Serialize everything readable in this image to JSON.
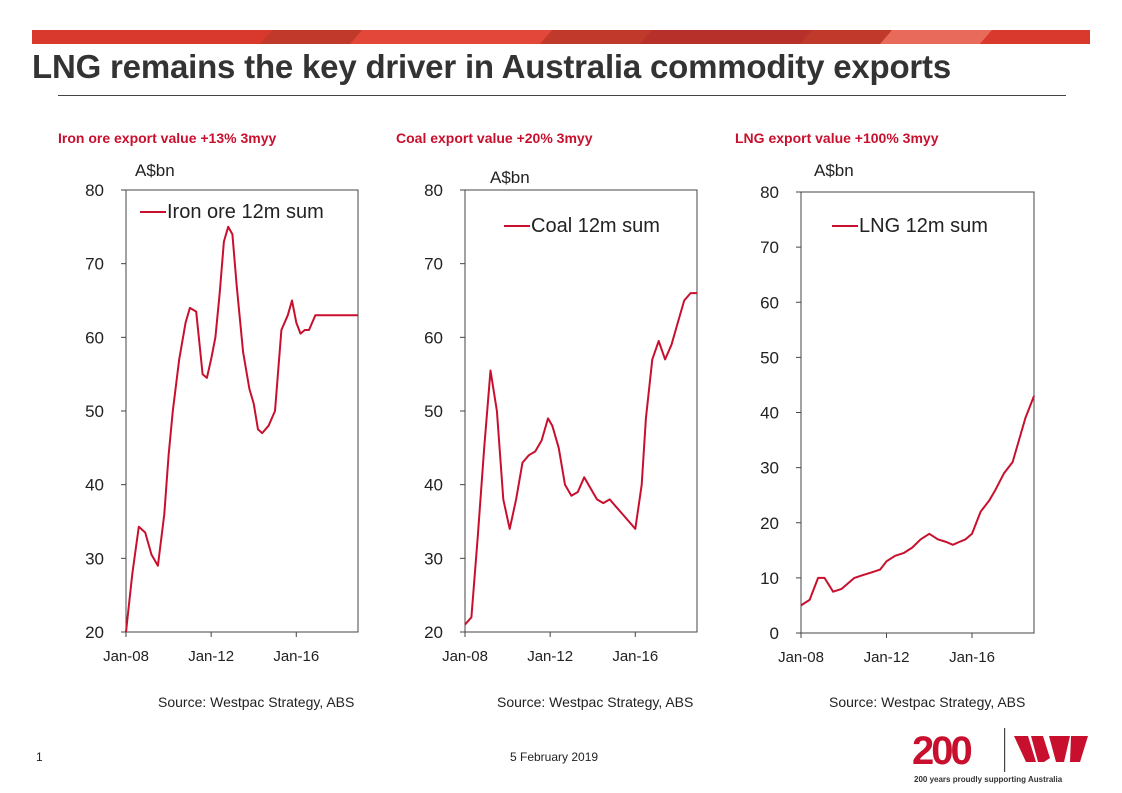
{
  "title": "LNG remains the key driver in Australia commodity exports",
  "colors": {
    "accent": "#c8102e",
    "title": "#333333",
    "bar_dark": "#c0392b",
    "bar_light": "#e35b4b"
  },
  "charts": [
    {
      "heading": "Iron ore export value +13% 3myy",
      "source": "Source: Westpac Strategy, ABS"
    },
    {
      "heading": "Coal export value +20% 3myy",
      "source": "Source: Westpac Strategy, ABS"
    },
    {
      "heading": "LNG export value +100% 3myy",
      "source": "Source: Westpac Strategy, ABS"
    }
  ],
  "chart_data": [
    {
      "type": "line",
      "title": "Iron ore export value +13% 3myy",
      "ylabel": "A$bn",
      "ylim": [
        20,
        80
      ],
      "yticks": [
        "20",
        "30",
        "40",
        "50",
        "60",
        "70",
        "80"
      ],
      "xticks": [
        "Jan-08",
        "Jan-12",
        "Jan-16"
      ],
      "xlim": [
        2008.0,
        2018.9
      ],
      "legend": "top-left",
      "series": [
        {
          "name": "Iron ore 12m sum",
          "x": [
            2008.0,
            2008.3,
            2008.6,
            2008.9,
            2009.2,
            2009.5,
            2009.8,
            2010.0,
            2010.2,
            2010.5,
            2010.8,
            2011.0,
            2011.3,
            2011.6,
            2011.8,
            2012.0,
            2012.2,
            2012.4,
            2012.6,
            2012.8,
            2013.0,
            2013.2,
            2013.5,
            2013.8,
            2014.0,
            2014.2,
            2014.4,
            2014.7,
            2015.0,
            2015.3,
            2015.6,
            2015.8,
            2016.0,
            2016.2,
            2016.4,
            2016.6,
            2016.9,
            2017.2,
            2017.5,
            2017.8,
            2018.0,
            2018.3,
            2018.6,
            2018.9
          ],
          "values": [
            20,
            28,
            34.3,
            33.5,
            30.5,
            29,
            36,
            44,
            50,
            57,
            62,
            64,
            63.5,
            55,
            54.5,
            57,
            60,
            66,
            73,
            75,
            74,
            67,
            58,
            53,
            51,
            47.5,
            47,
            48,
            50,
            61,
            63,
            65,
            62,
            60.5,
            61,
            61,
            63,
            63,
            63,
            63,
            63,
            63,
            63,
            63
          ]
        }
      ]
    },
    {
      "type": "line",
      "title": "Coal export value +20% 3myy",
      "ylabel": "A$bn",
      "ylim": [
        20,
        80
      ],
      "yticks": [
        "20",
        "30",
        "40",
        "50",
        "60",
        "70",
        "80"
      ],
      "xticks": [
        "Jan-08",
        "Jan-12",
        "Jan-16"
      ],
      "xlim": [
        2008.0,
        2018.9
      ],
      "legend": "top-left",
      "series": [
        {
          "name": "Coal 12m sum",
          "x": [
            2008.0,
            2008.3,
            2008.6,
            2008.9,
            2009.2,
            2009.5,
            2009.8,
            2010.1,
            2010.4,
            2010.7,
            2011.0,
            2011.3,
            2011.6,
            2011.9,
            2012.1,
            2012.4,
            2012.7,
            2013.0,
            2013.3,
            2013.6,
            2013.9,
            2014.2,
            2014.5,
            2014.8,
            2015.1,
            2015.4,
            2015.7,
            2016.0,
            2016.3,
            2016.5,
            2016.8,
            2017.1,
            2017.4,
            2017.7,
            2018.0,
            2018.3,
            2018.6,
            2018.9
          ],
          "values": [
            21,
            22,
            33,
            45,
            55.5,
            50,
            38,
            34,
            38,
            43,
            44,
            44.5,
            46,
            49,
            48,
            45,
            40,
            38.5,
            39,
            41,
            39.5,
            38,
            37.5,
            38,
            37,
            36,
            35,
            34,
            40,
            49,
            57,
            59.5,
            57,
            59,
            62,
            65,
            66,
            66
          ]
        }
      ]
    },
    {
      "type": "line",
      "title": "LNG export value +100% 3myy",
      "ylabel": "A$bn",
      "ylim": [
        0,
        80
      ],
      "yticks": [
        "0",
        "10",
        "20",
        "30",
        "40",
        "50",
        "60",
        "70",
        "80"
      ],
      "xticks": [
        "Jan-08",
        "Jan-12",
        "Jan-16"
      ],
      "xlim": [
        2008.0,
        2018.9
      ],
      "legend": "top-left",
      "series": [
        {
          "name": "LNG 12m sum",
          "x": [
            2008.0,
            2008.4,
            2008.8,
            2009.1,
            2009.5,
            2009.9,
            2010.2,
            2010.5,
            2010.9,
            2011.3,
            2011.7,
            2012.0,
            2012.4,
            2012.8,
            2013.2,
            2013.6,
            2014.0,
            2014.4,
            2014.8,
            2015.1,
            2015.4,
            2015.7,
            2016.0,
            2016.4,
            2016.8,
            2017.1,
            2017.5,
            2017.9,
            2018.2,
            2018.5,
            2018.9
          ],
          "values": [
            5,
            6,
            10,
            10,
            7.5,
            8,
            9,
            10,
            10.5,
            11,
            11.5,
            13,
            14,
            14.5,
            15.5,
            17,
            18,
            17,
            16.5,
            16,
            16.5,
            17,
            18,
            22,
            24,
            26,
            29,
            31,
            35,
            39,
            43
          ]
        }
      ]
    }
  ]
}
